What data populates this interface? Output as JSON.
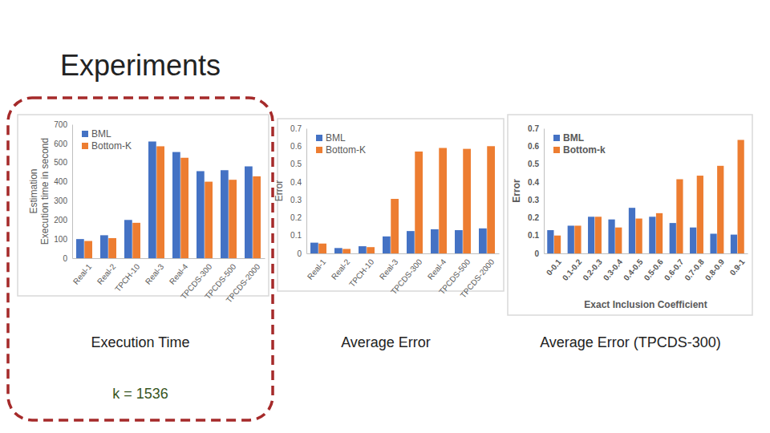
{
  "title": "Experiments",
  "chart_data": [
    {
      "type": "bar",
      "title": "Execution Time",
      "y_label": "Estimation\nExecution time in second",
      "annotations": [
        "k = 1536"
      ],
      "categories": [
        "Real-1",
        "Real-2",
        "TPCH-10",
        "Real-3",
        "Real-4",
        "TPCDS-300",
        "TPCDS-500",
        "TPCDS-2000"
      ],
      "series": [
        {
          "name": "BML",
          "color": "#4472c4",
          "values": [
            100,
            120,
            200,
            610,
            555,
            455,
            460,
            480
          ]
        },
        {
          "name": "Bottom-K",
          "color": "#ed7d31",
          "values": [
            90,
            105,
            185,
            585,
            525,
            400,
            410,
            428
          ]
        }
      ],
      "ylim": [
        0,
        700
      ],
      "yticks": [
        0,
        100,
        200,
        300,
        400,
        500,
        600,
        700
      ],
      "grid": false,
      "legend": "top-left"
    },
    {
      "type": "bar",
      "title": "Average Error",
      "y_label": "Error",
      "categories": [
        "Real-1",
        "Real-2",
        "TPCH-10",
        "Real-3",
        "TPCDS-300",
        "Real-4",
        "TPCDS-500",
        "TPCDS-2000"
      ],
      "series": [
        {
          "name": "BML",
          "color": "#4472c4",
          "values": [
            0.06,
            0.03,
            0.04,
            0.095,
            0.125,
            0.135,
            0.13,
            0.14
          ]
        },
        {
          "name": "Bottom-K",
          "color": "#ed7d31",
          "values": [
            0.055,
            0.025,
            0.035,
            0.305,
            0.57,
            0.59,
            0.585,
            0.6
          ]
        }
      ],
      "ylim": [
        0,
        0.7
      ],
      "yticks": [
        0,
        0.1,
        0.2,
        0.3,
        0.4,
        0.5,
        0.6,
        0.7
      ],
      "grid": false,
      "legend": "top-left"
    },
    {
      "type": "bar",
      "title": "Average Error (TPCDS-300)",
      "y_label": "Error",
      "x_label": "Exact Inclusion Coefficient",
      "categories": [
        "0-0.1",
        "0.1-0.2",
        "0.2-0.3",
        "0.3-0.4",
        "0.4-0.5",
        "0.5-0.6",
        "0.6-0.7",
        "0.7-0.8",
        "0.8-0.9",
        "0.9-1"
      ],
      "series": [
        {
          "name": "BML",
          "color": "#4472c4",
          "values": [
            0.13,
            0.155,
            0.205,
            0.19,
            0.255,
            0.205,
            0.17,
            0.145,
            0.11,
            0.105
          ]
        },
        {
          "name": "Bottom-k",
          "color": "#ed7d31",
          "values": [
            0.1,
            0.155,
            0.205,
            0.145,
            0.195,
            0.225,
            0.415,
            0.435,
            0.49,
            0.635
          ]
        }
      ],
      "ylim": [
        0,
        0.7
      ],
      "yticks": [
        0,
        0.1,
        0.2,
        0.3,
        0.4,
        0.5,
        0.6,
        0.7
      ],
      "grid": false,
      "legend": "top-left"
    }
  ]
}
